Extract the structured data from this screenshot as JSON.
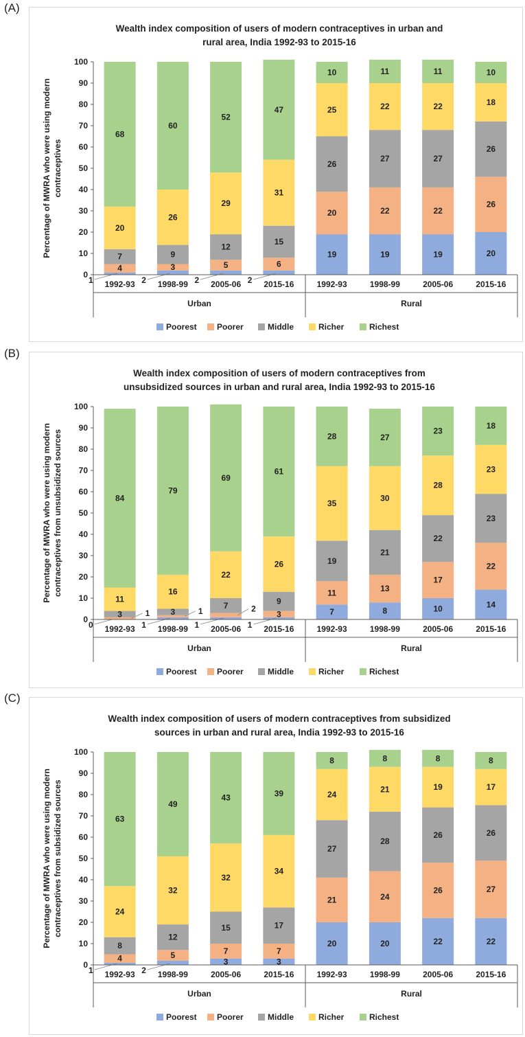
{
  "colors": {
    "Poorest": "#8faadc",
    "Poorer": "#f4b183",
    "Middle": "#a5a5a5",
    "Richer": "#ffd966",
    "Richest": "#a9d18e"
  },
  "chart_data": [
    {
      "panel": "(A)",
      "type": "bar",
      "stacked": true,
      "title_lines": [
        "Wealth index composition of users of  modern contraceptives in urban and",
        "rural area, India 1992-93 to 2015-16"
      ],
      "ylabel_lines": [
        "Percentage of MWRA who were using modern",
        "contraceptives"
      ],
      "ylim": [
        0,
        100
      ],
      "yticks": [
        "0",
        "10",
        "20",
        "30",
        "40",
        "50",
        "60",
        "70",
        "80",
        "90",
        "100"
      ],
      "groups": [
        "Urban",
        "Rural"
      ],
      "categories": [
        "1992-93",
        "1998-99",
        "2005-06",
        "2015-16",
        "1992-93",
        "1998-99",
        "2005-06",
        "2015-16"
      ],
      "series": [
        {
          "name": "Poorest",
          "values": [
            1,
            2,
            2,
            2,
            19,
            19,
            19,
            20
          ]
        },
        {
          "name": "Poorer",
          "values": [
            4,
            3,
            5,
            6,
            20,
            22,
            22,
            26
          ]
        },
        {
          "name": "Middle",
          "values": [
            7,
            9,
            12,
            15,
            26,
            27,
            27,
            26
          ]
        },
        {
          "name": "Richer",
          "values": [
            20,
            26,
            29,
            31,
            25,
            22,
            22,
            18
          ]
        },
        {
          "name": "Richest",
          "values": [
            68,
            60,
            52,
            47,
            10,
            11,
            11,
            10
          ]
        }
      ],
      "labels": [
        [
          "1",
          "4",
          "7",
          "20",
          "68"
        ],
        [
          "2",
          "3",
          "9",
          "26",
          "60"
        ],
        [
          "2",
          "5",
          "12",
          "29",
          "52"
        ],
        [
          "2",
          "6",
          "15",
          "31",
          "47"
        ],
        [
          "19",
          "20",
          "26",
          "25",
          "10"
        ],
        [
          "19",
          "22",
          "27",
          "22",
          "11"
        ],
        [
          "19",
          "22",
          "27",
          "22",
          "11"
        ],
        [
          "20",
          "26",
          "26",
          "18",
          "10"
        ]
      ],
      "legend": [
        "Poorest",
        "Poorer",
        "Middle",
        "Richer",
        "Richest"
      ],
      "legend_position": "bottom",
      "grid": false
    },
    {
      "panel": "(B)",
      "type": "bar",
      "stacked": true,
      "title_lines": [
        "Wealth index composition of users of  modern contraceptives from",
        "unsubsidized sources in urban and rural area, India 1992-93 to 2015-16"
      ],
      "ylabel_lines": [
        "Percentage of MWRA who were using modern",
        "contraceptives from unsubsidized sources"
      ],
      "ylim": [
        0,
        100
      ],
      "yticks": [
        "0",
        "10",
        "20",
        "30",
        "40",
        "50",
        "60",
        "70",
        "80",
        "90",
        "100"
      ],
      "groups": [
        "Urban",
        "Rural"
      ],
      "categories": [
        "1992-93",
        "1998-99",
        "2005-06",
        "2015-16",
        "1992-93",
        "1998-99",
        "2005-06",
        "2015-16"
      ],
      "series": [
        {
          "name": "Poorest",
          "values": [
            0,
            1,
            1,
            1,
            7,
            8,
            10,
            14
          ]
        },
        {
          "name": "Poorer",
          "values": [
            1,
            1,
            2,
            3,
            11,
            13,
            17,
            22
          ]
        },
        {
          "name": "Middle",
          "values": [
            3,
            3,
            7,
            9,
            19,
            21,
            22,
            23
          ]
        },
        {
          "name": "Richer",
          "values": [
            11,
            16,
            22,
            26,
            35,
            30,
            28,
            23
          ]
        },
        {
          "name": "Richest",
          "values": [
            84,
            79,
            69,
            61,
            28,
            27,
            23,
            18
          ]
        }
      ],
      "labels": [
        [
          "0",
          "1",
          "3",
          "11",
          "84"
        ],
        [
          "1",
          "1",
          "3",
          "16",
          "79"
        ],
        [
          "1",
          "2",
          "7",
          "22",
          "69"
        ],
        [
          "1",
          "3",
          "9",
          "26",
          "61"
        ],
        [
          "7",
          "11",
          "19",
          "35",
          "28"
        ],
        [
          "8",
          "13",
          "21",
          "30",
          "27"
        ],
        [
          "10",
          "17",
          "22",
          "28",
          "23"
        ],
        [
          "14",
          "22",
          "23",
          "23",
          "18"
        ]
      ],
      "legend": [
        "Poorest",
        "Poorer",
        "Middle",
        "Richer",
        "Richest"
      ],
      "legend_position": "bottom",
      "grid": false
    },
    {
      "panel": "(C)",
      "type": "bar",
      "stacked": true,
      "title_lines": [
        "Wealth index composition of users of  modern contraceptives from subsidized",
        "sources in urban and rural area, India 1992-93 to 2015-16"
      ],
      "ylabel_lines": [
        "Percentage of MWRA who were using modern",
        "contraceptives from subsidized sources"
      ],
      "ylim": [
        0,
        100
      ],
      "yticks": [
        "0",
        "10",
        "20",
        "30",
        "40",
        "50",
        "60",
        "70",
        "80",
        "90",
        "100"
      ],
      "groups": [
        "Urban",
        "Rural"
      ],
      "categories": [
        "1992-93",
        "1998-99",
        "2005-06",
        "2015-16",
        "1992-93",
        "1998-99",
        "2005-06",
        "2015-16"
      ],
      "series": [
        {
          "name": "Poorest",
          "values": [
            1,
            2,
            3,
            3,
            20,
            20,
            22,
            22
          ]
        },
        {
          "name": "Poorer",
          "values": [
            4,
            5,
            7,
            7,
            21,
            24,
            26,
            27
          ]
        },
        {
          "name": "Middle",
          "values": [
            8,
            12,
            15,
            17,
            27,
            28,
            26,
            26
          ]
        },
        {
          "name": "Richer",
          "values": [
            24,
            32,
            32,
            34,
            24,
            21,
            19,
            17
          ]
        },
        {
          "name": "Richest",
          "values": [
            63,
            49,
            43,
            39,
            8,
            8,
            8,
            8
          ]
        }
      ],
      "labels": [
        [
          "1",
          "4",
          "8",
          "24",
          "63"
        ],
        [
          "2",
          "5",
          "12",
          "32",
          "49"
        ],
        [
          "3",
          "7",
          "15",
          "32",
          "43"
        ],
        [
          "3",
          "7",
          "17",
          "34",
          "39"
        ],
        [
          "20",
          "21",
          "27",
          "24",
          "8"
        ],
        [
          "20",
          "24",
          "28",
          "21",
          "8"
        ],
        [
          "22",
          "26",
          "26",
          "19",
          "8"
        ],
        [
          "22",
          "27",
          "26",
          "17",
          "8"
        ]
      ],
      "legend": [
        "Poorest",
        "Poorer",
        "Middle",
        "Richer",
        "Richest"
      ],
      "legend_position": "bottom",
      "grid": false
    }
  ]
}
